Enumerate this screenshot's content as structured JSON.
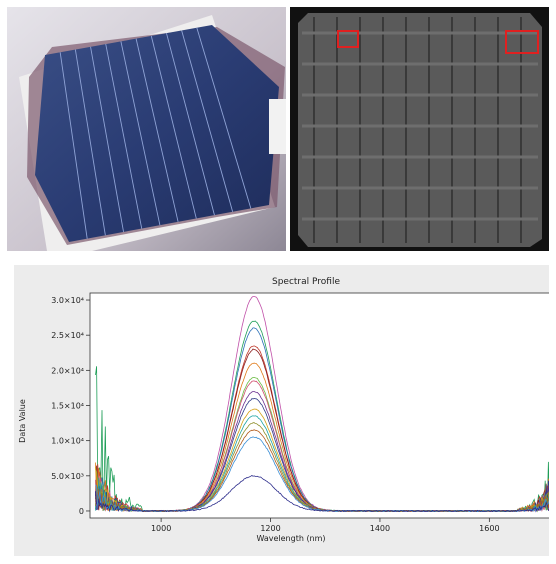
{
  "chart_data": {
    "type": "line",
    "title": "Spectral Profile",
    "xlabel": "Wavelength (nm)",
    "ylabel": "Data Value",
    "xlim": [
      870,
      1720
    ],
    "ylim": [
      -1000,
      31000
    ],
    "x_ticks": [
      1000,
      1200,
      1400,
      1600
    ],
    "y_ticks": [
      0,
      5000,
      10000,
      15000,
      20000,
      25000,
      30000
    ],
    "y_tick_labels": [
      "0",
      "5.0×10³",
      "1.0×10⁴",
      "1.5×10⁴",
      "2.0×10⁴",
      "2.5×10⁴",
      "3.0×10⁴"
    ],
    "x_tick_labels": [
      "1000",
      "1200",
      "1400",
      "1600"
    ],
    "grid": false,
    "legend": "none",
    "peak_wavelength": 1170,
    "series": [
      {
        "color": "#c04fa8",
        "peak": 30500,
        "left_noise": 9000,
        "right_noise": 6000
      },
      {
        "color": "#1f9e58",
        "peak": 27000,
        "left_noise": 25000,
        "right_noise": 9000
      },
      {
        "color": "#2a6fb8",
        "peak": 26000,
        "left_noise": 8000,
        "right_noise": 5000
      },
      {
        "color": "#c0392b",
        "peak": 23500,
        "left_noise": 10000,
        "right_noise": 7000
      },
      {
        "color": "#8b1a1a",
        "peak": 23000,
        "left_noise": 7000,
        "right_noise": 6000
      },
      {
        "color": "#e07b1a",
        "peak": 21000,
        "left_noise": 9000,
        "right_noise": 8000
      },
      {
        "color": "#6dbd45",
        "peak": 19000,
        "left_noise": 8000,
        "right_noise": 6000
      },
      {
        "color": "#d04f6f",
        "peak": 18500,
        "left_noise": 7000,
        "right_noise": 5000
      },
      {
        "color": "#6a2f8f",
        "peak": 17000,
        "left_noise": 6000,
        "right_noise": 5000
      },
      {
        "color": "#2e3a87",
        "peak": 16000,
        "left_noise": 8000,
        "right_noise": 6000
      },
      {
        "color": "#d4a017",
        "peak": 14500,
        "left_noise": 7000,
        "right_noise": 5000
      },
      {
        "color": "#1aa3a3",
        "peak": 13500,
        "left_noise": 6000,
        "right_noise": 4000
      },
      {
        "color": "#8e8e2a",
        "peak": 12500,
        "left_noise": 5000,
        "right_noise": 4000
      },
      {
        "color": "#b05a1a",
        "peak": 11500,
        "left_noise": 5000,
        "right_noise": 4000
      },
      {
        "color": "#3b8fd6",
        "peak": 10500,
        "left_noise": 4000,
        "right_noise": 3000
      },
      {
        "color": "#2a2a8a",
        "peak": 5000,
        "left_noise": 3000,
        "right_noise": 2000
      }
    ]
  }
}
